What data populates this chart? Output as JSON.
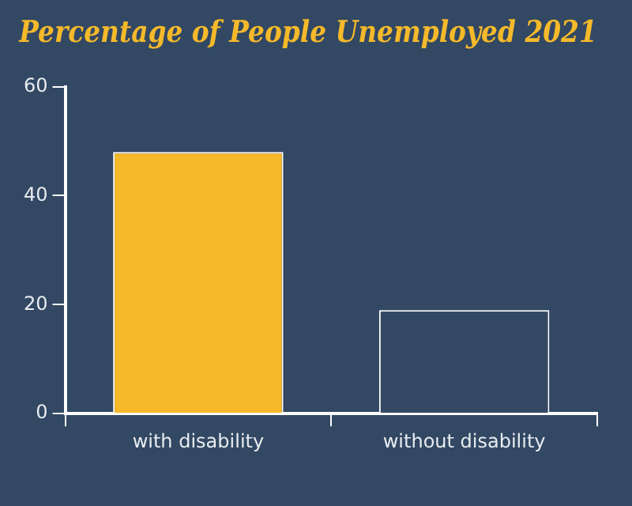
{
  "chart_data": {
    "type": "bar",
    "title": "Percentage of People Unemployed 2021",
    "categories": [
      "with disability",
      "without disability"
    ],
    "values": [
      48,
      19
    ],
    "colors": [
      "#f5b92a",
      "#324863"
    ],
    "ylim": [
      0,
      60
    ],
    "yticks": [
      0,
      20,
      40,
      60
    ],
    "grid": false,
    "legend": false
  }
}
